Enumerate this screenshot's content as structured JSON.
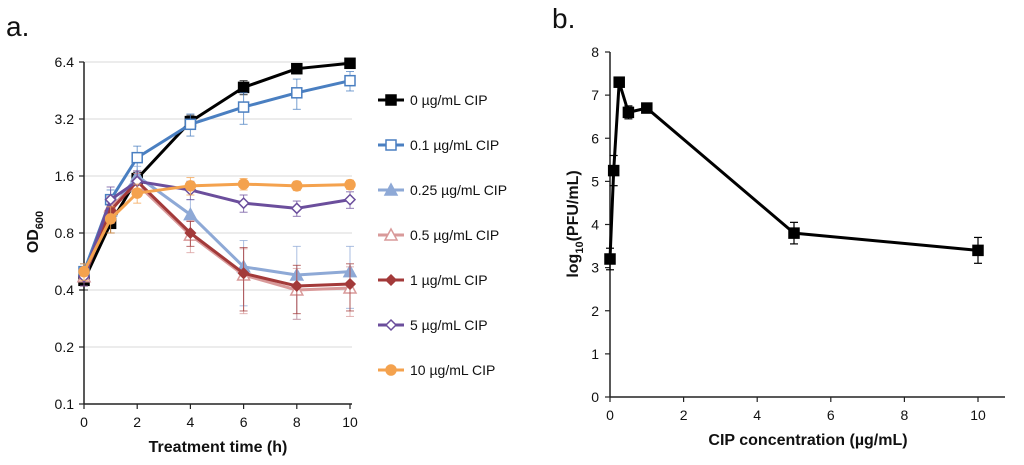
{
  "chart_data": [
    {
      "panel": "a.",
      "type": "line",
      "xlabel": "Treatment time (h)",
      "ylabel_main": "OD",
      "ylabel_sub": "600",
      "yscale": "log2",
      "xlim": [
        0,
        10
      ],
      "ylim": [
        0.1,
        6.4
      ],
      "xticks": [
        0,
        2,
        4,
        6,
        8,
        10
      ],
      "yticks": [
        0.1,
        0.2,
        0.4,
        0.8,
        1.6,
        3.2,
        6.4
      ],
      "ytick_labels": [
        "0.1",
        "0.2",
        "0.4",
        "0.8",
        "1.6",
        "3.2",
        "6.4"
      ],
      "x": [
        0,
        1,
        2,
        4,
        6,
        8,
        10
      ],
      "series": [
        {
          "name": "0 µg/mL CIP",
          "color": "#000000",
          "marker": "square-filled",
          "values": [
            0.45,
            0.9,
            1.55,
            3.1,
            4.7,
            5.9,
            6.3
          ],
          "errors": [
            0.05,
            0.1,
            0.12,
            0.25,
            0.4,
            0.35,
            0.3
          ]
        },
        {
          "name": "0.1 µg/mL CIP",
          "color": "#4a7fc1",
          "marker": "square-open",
          "values": [
            0.5,
            1.2,
            2.0,
            3.0,
            3.7,
            4.4,
            5.1
          ],
          "errors": [
            0.05,
            0.15,
            0.3,
            0.4,
            0.7,
            0.8,
            0.6
          ]
        },
        {
          "name": "0.25 µg/mL CIP",
          "color": "#8ea9d6",
          "marker": "triangle-filled",
          "values": [
            0.47,
            1.05,
            1.6,
            1.0,
            0.53,
            0.48,
            0.5
          ],
          "errors": [
            0.05,
            0.15,
            0.2,
            0.2,
            0.2,
            0.2,
            0.18
          ]
        },
        {
          "name": "0.5 µg/mL CIP",
          "color": "#d99a9a",
          "marker": "triangle-open",
          "values": [
            0.47,
            1.1,
            1.45,
            0.78,
            0.48,
            0.4,
            0.41
          ],
          "errors": [
            0.05,
            0.15,
            0.2,
            0.15,
            0.18,
            0.12,
            0.12
          ]
        },
        {
          "name": "1 µg/mL CIP",
          "color": "#a33a3a",
          "marker": "diamond-filled",
          "values": [
            0.47,
            1.05,
            1.5,
            0.8,
            0.49,
            0.42,
            0.43
          ],
          "errors": [
            0.05,
            0.15,
            0.2,
            0.12,
            0.18,
            0.12,
            0.12
          ]
        },
        {
          "name": "5 µg/mL CIP",
          "color": "#6b4e9c",
          "marker": "diamond-open",
          "values": [
            0.47,
            1.2,
            1.5,
            1.35,
            1.15,
            1.08,
            1.2
          ],
          "errors": [
            0.05,
            0.2,
            0.2,
            0.15,
            0.12,
            0.1,
            0.12
          ]
        },
        {
          "name": "10 µg/mL CIP",
          "color": "#f4a24e",
          "marker": "circle-filled",
          "values": [
            0.5,
            0.95,
            1.3,
            1.42,
            1.45,
            1.42,
            1.44
          ],
          "errors": [
            0.05,
            0.15,
            0.15,
            0.15,
            0.1,
            0.08,
            0.08
          ]
        }
      ]
    },
    {
      "panel": "b.",
      "type": "line",
      "xlabel": "CIP concentration (µg/mL)",
      "ylabel_main": "log",
      "ylabel_sub": "10",
      "ylabel_rest": "(PFU/mL)",
      "xlim": [
        0,
        10
      ],
      "ylim": [
        0,
        8
      ],
      "xticks": [
        0,
        2,
        4,
        6,
        8,
        10
      ],
      "yticks": [
        0,
        1,
        2,
        3,
        4,
        5,
        6,
        7,
        8
      ],
      "series": [
        {
          "name": "PFU",
          "color": "#000000",
          "marker": "square-filled",
          "x": [
            0,
            0.1,
            0.25,
            0.5,
            1,
            5,
            10
          ],
          "values": [
            3.2,
            5.25,
            7.3,
            6.6,
            6.7,
            3.8,
            3.4
          ],
          "errors": [
            0.25,
            0.35,
            0.1,
            0.15,
            0.05,
            0.25,
            0.3
          ]
        }
      ]
    }
  ]
}
